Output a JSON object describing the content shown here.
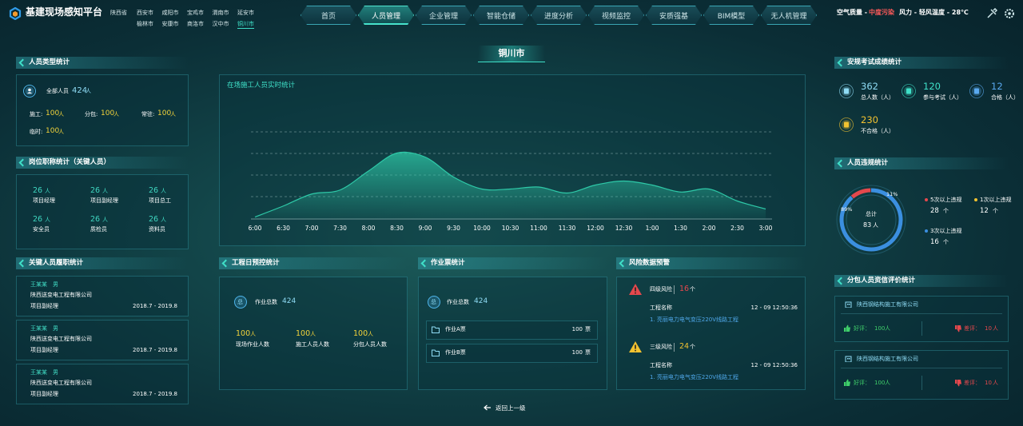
{
  "header": {
    "title": "基建现场感知平台",
    "regions": [
      "陕西省",
      "西安市",
      "咸阳市",
      "宝鸡市",
      "渭南市",
      "延安市",
      "榆林市",
      "安康市",
      "商洛市",
      "汉中市",
      "铜川市"
    ]
  },
  "nav": [
    "首页",
    "人员管理",
    "企业管理",
    "智能仓储",
    "进度分析",
    "视频监控",
    "安质强基",
    "BIM模型",
    "无人机管理"
  ],
  "weather": {
    "air_label": "空气质量 -",
    "air_value": "中度污染",
    "wind": "风力 - 轻风",
    "temperature": "温度 - 28℃"
  },
  "map_title": "铜川市",
  "personnel_types": {
    "title": "人员类型统计",
    "total_label": "全部人员",
    "total": 424,
    "unit": "人",
    "items": [
      {
        "label": "施工:",
        "value": 100
      },
      {
        "label": "分包:",
        "value": 100
      },
      {
        "label": "常驻:",
        "value": 100
      },
      {
        "label": "临时:",
        "value": 100
      }
    ]
  },
  "positions": {
    "title": "岗位职称统计（关键人员）",
    "unit": "人",
    "items": [
      {
        "value": 26,
        "label": "项目经理"
      },
      {
        "value": 26,
        "label": "项目副经理"
      },
      {
        "value": 26,
        "label": "项目总工"
      },
      {
        "value": 26,
        "label": "安全员"
      },
      {
        "value": 26,
        "label": "质检员"
      },
      {
        "value": 26,
        "label": "资料员"
      }
    ]
  },
  "key_personnel": {
    "title": "关键人员履职统计",
    "records": [
      {
        "name": "王某某",
        "gender": "男",
        "company": "陕西送变电工程有限公司",
        "role": "项目副经理",
        "period": "2018.7 - 2019.8"
      },
      {
        "name": "王某某",
        "gender": "男",
        "company": "陕西送变电工程有限公司",
        "role": "项目副经理",
        "period": "2018.7 - 2019.8"
      },
      {
        "name": "王某某",
        "gender": "男",
        "company": "陕西送变电工程有限公司",
        "role": "项目副经理",
        "period": "2018.7 - 2019.8"
      }
    ]
  },
  "realtime_chart": {
    "type": "area",
    "title": "在场施工人员实时统计",
    "x": [
      "6:00",
      "6:30",
      "7:00",
      "7:30",
      "8:00",
      "8:30",
      "9:00",
      "9:30",
      "10:00",
      "10:30",
      "11:00",
      "11:30",
      "12:00",
      "12:30",
      "1:00",
      "1:30",
      "2:00",
      "2:30",
      "3:00"
    ],
    "values": [
      2,
      13,
      25,
      29,
      48,
      66,
      62,
      42,
      30,
      30,
      32,
      26,
      34,
      38,
      34,
      27,
      30,
      18,
      10
    ],
    "ylim": [
      0,
      100
    ],
    "color": "#2ec9a8"
  },
  "daily_control": {
    "title": "工程日预控统计",
    "total_badge": "总",
    "total_label": "作业总数",
    "total": 424,
    "unit": "人",
    "items": [
      {
        "value": 100,
        "label": "现场作业人数"
      },
      {
        "value": 100,
        "label": "施工人员人数"
      },
      {
        "value": 100,
        "label": "分包人员人数"
      }
    ]
  },
  "work_tickets": {
    "title": "作业票统计",
    "total_badge": "总",
    "total_label": "作业总数",
    "total": 424,
    "unit": "票",
    "tickets": [
      {
        "name": "作业A票",
        "value": 100
      },
      {
        "name": "作业B票",
        "value": 100
      }
    ]
  },
  "risk": {
    "title": "风险数据预警",
    "unit": "个",
    "items": [
      {
        "level": "四级风险",
        "count": 16,
        "color": "#e5484d",
        "project_label": "工程名称",
        "time": "12 - 09 12:50:36",
        "project": "1. 亮丽电力电气变压220V线路工程"
      },
      {
        "level": "三级风险",
        "count": 24,
        "color": "#f2c230",
        "project_label": "工程名称",
        "time": "12 - 09 12:50:36",
        "project": "1. 亮丽电力电气变压220V线路工程"
      }
    ]
  },
  "back": "返回上一级",
  "exam": {
    "title": "安规考试成绩统计",
    "items": [
      {
        "value": 362,
        "label": "总人数（人）",
        "color": "#8fdcf5"
      },
      {
        "value": 120,
        "label": "参与考试（人）",
        "color": "#3fe0c8"
      },
      {
        "value": 12,
        "label": "合格（人）",
        "color": "#5aa9f0"
      },
      {
        "value": 230,
        "label": "不合格（人）",
        "color": "#f2c230"
      }
    ]
  },
  "violations": {
    "title": "人员违规统计",
    "total_label": "总计",
    "total": 83,
    "total_unit": "人",
    "unit": "个",
    "ring": [
      {
        "value": 89,
        "label": "89%",
        "color": "#3b8fe0"
      },
      {
        "value": 11,
        "label": "11%",
        "color": "#e5484d"
      }
    ],
    "legend": [
      {
        "label": "5次以上违规",
        "value": 28,
        "color": "#e5484d"
      },
      {
        "label": "1次以上违规",
        "value": 12,
        "color": "#f2c230"
      },
      {
        "label": "3次以上违规",
        "value": 16,
        "color": "#3b8fe0"
      }
    ]
  },
  "subcontractor": {
    "title": "分包人员资信评价统计",
    "unit": "人",
    "items": [
      {
        "company": "陕西钢结构施工有限公司",
        "good_label": "好评：",
        "good": 100,
        "bad_label": "差评：",
        "bad": 10
      },
      {
        "company": "陕西钢结构施工有限公司",
        "good_label": "好评：",
        "good": 100,
        "bad_label": "差评：",
        "bad": 10
      }
    ]
  }
}
